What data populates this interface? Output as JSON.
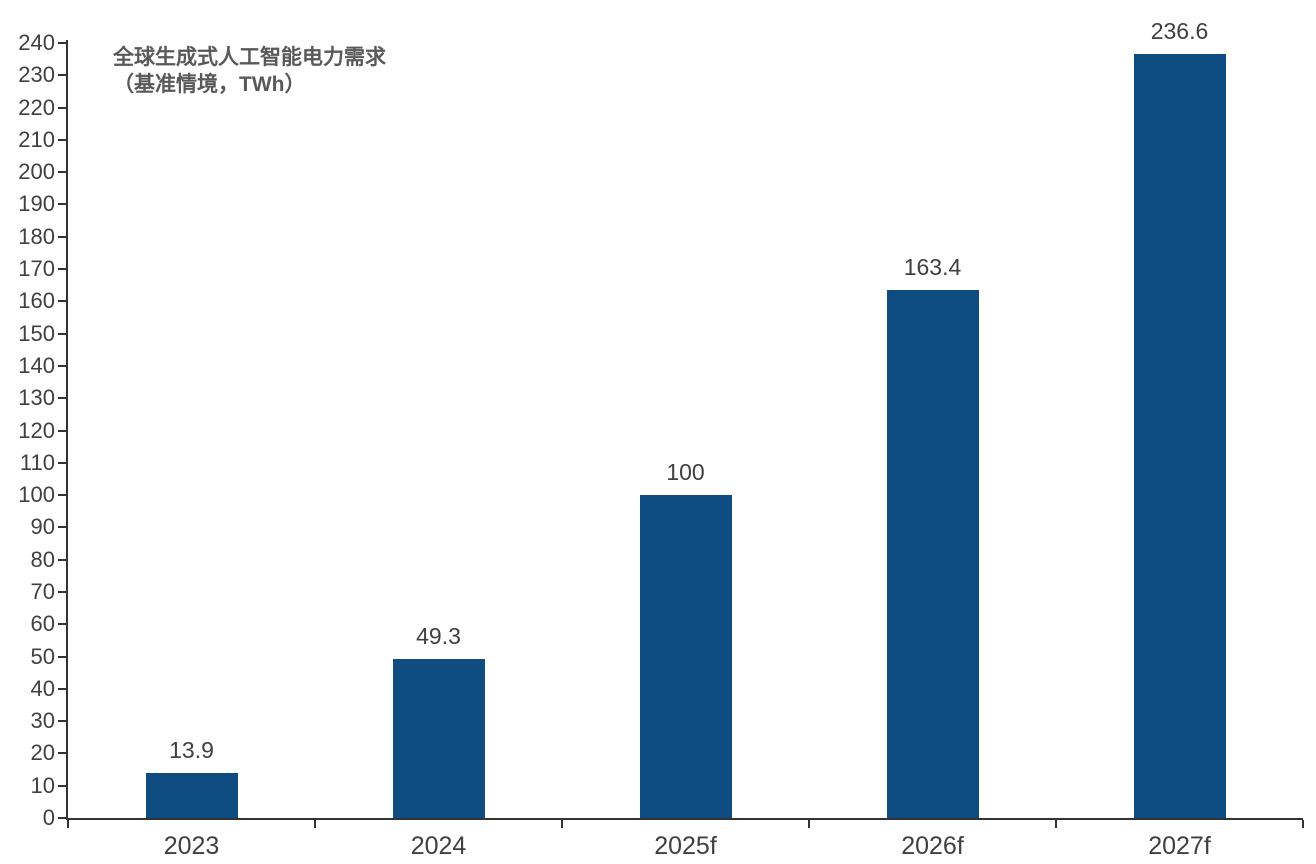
{
  "chart_data": {
    "type": "bar",
    "title": "全球生成式人工智能电力需求（基准情境，TWh）",
    "title_lines": [
      "全球生成式人工智能电力需求",
      "（基准情境，TWh）"
    ],
    "categories": [
      "2023",
      "2024",
      "2025f",
      "2026f",
      "2027f"
    ],
    "values": [
      13.9,
      49.3,
      100,
      163.4,
      236.6
    ],
    "value_labels": [
      "13.9",
      "49.3",
      "100",
      "163.4",
      "236.6"
    ],
    "xlabel": "",
    "ylabel": "",
    "ylim": [
      0,
      240
    ],
    "ytick_step": 10,
    "grid": false,
    "legend": "none",
    "colors": {
      "bar": "#0E4C82",
      "axis": "#333333",
      "tick_label": "#404040",
      "title": "#595959"
    }
  }
}
